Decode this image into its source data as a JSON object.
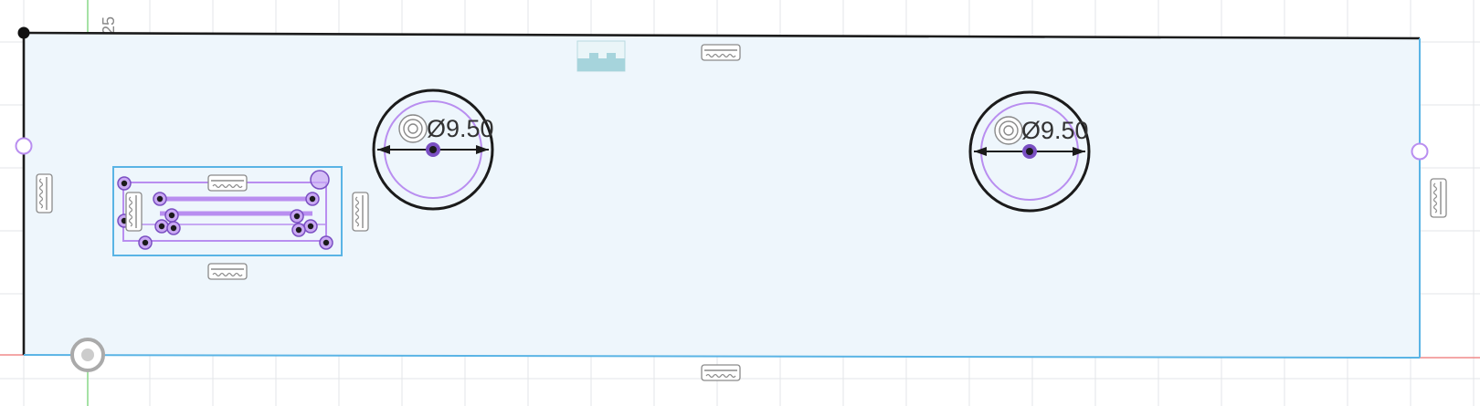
{
  "viewport": {
    "grid_label": "25",
    "colors": {
      "background": "#ffffff",
      "grid": "#e3e6e9",
      "profile_fill": "#eef6fc",
      "sketch_line": "#1b1b1b",
      "selection": "#5ab4e5",
      "construction": "#b98ef0",
      "y_axis": "#7fd67f",
      "x_axis": "#f08a8a"
    }
  },
  "sketch": {
    "dimensions": [
      {
        "id": "left-hole",
        "text": "Ø9.50"
      },
      {
        "id": "right-hole",
        "text": "Ø9.50"
      }
    ],
    "constraint_icons": [
      "horizontal-constraint-icon",
      "vertical-constraint-icon",
      "midpoint-constraint-icon",
      "concentric-constraint-icon"
    ]
  }
}
